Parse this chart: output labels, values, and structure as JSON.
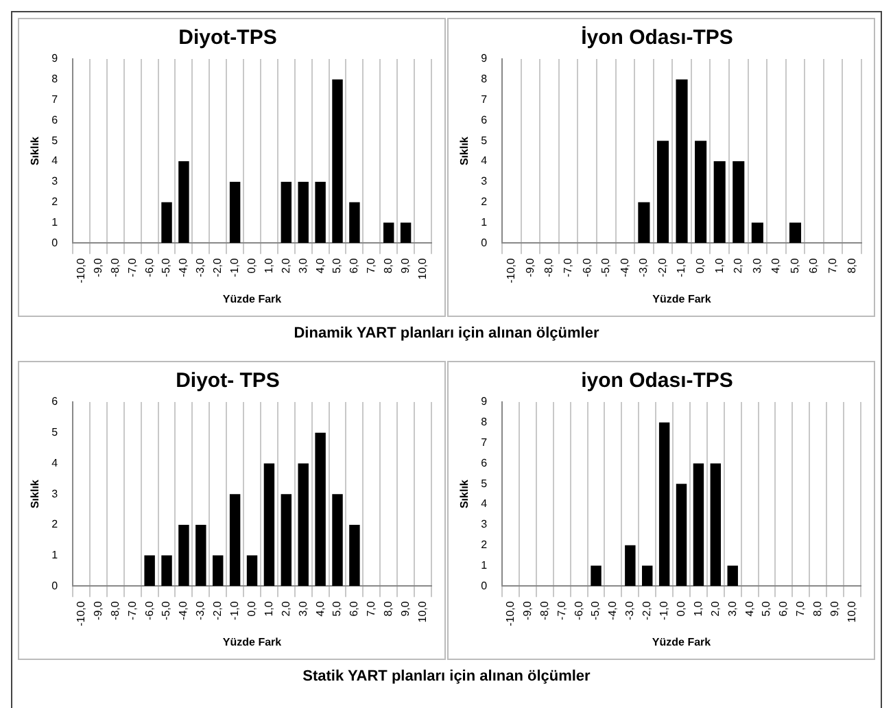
{
  "chart_data": [
    {
      "type": "bar",
      "title": "Diyot-TPS",
      "xlabel": "Yüzde Fark",
      "ylabel": "Sıklık",
      "color": "#000000",
      "grid": "x",
      "ylim": [
        0,
        9
      ],
      "yticks": [
        0,
        1,
        2,
        3,
        4,
        5,
        6,
        7,
        8,
        9
      ],
      "annotations": [
        "Dinamik YART planları için alınan ölçümler"
      ],
      "categories": [
        "-10,0",
        "-9,0",
        "-8,0",
        "-7,0",
        "-6,0",
        "-5,0",
        "-4,0",
        "-3,0",
        "-2,0",
        "-1,0",
        "0,0",
        "1,0",
        "2,0",
        "3,0",
        "4,0",
        "5,0",
        "6,0",
        "7,0",
        "8,0",
        "9,0",
        "10,0"
      ],
      "values": [
        0,
        0,
        0,
        0,
        0,
        2,
        4,
        0,
        0,
        3,
        0,
        0,
        3,
        3,
        3,
        8,
        2,
        0,
        1,
        1,
        0
      ]
    },
    {
      "type": "bar",
      "title": "İyon Odası-TPS",
      "xlabel": "Yüzde Fark",
      "ylabel": "Sıklık",
      "color": "#000000",
      "grid": "x",
      "ylim": [
        0,
        9
      ],
      "yticks": [
        0,
        1,
        2,
        3,
        4,
        5,
        6,
        7,
        8,
        9
      ],
      "categories": [
        "-10,0",
        "-9,0",
        "-8,0",
        "-7,0",
        "-6,0",
        "-5,0",
        "-4,0",
        "-3,0",
        "-2,0",
        "-1,0",
        "0,0",
        "1,0",
        "2,0",
        "3,0",
        "4,0",
        "5,0",
        "6,0",
        "7,0",
        "8,0"
      ],
      "values": [
        0,
        0,
        0,
        0,
        0,
        0,
        0,
        2,
        5,
        8,
        5,
        4,
        4,
        1,
        0,
        1,
        0,
        0,
        0
      ]
    },
    {
      "type": "bar",
      "title": "Diyot- TPS",
      "xlabel": "Yüzde Fark",
      "ylabel": "Sıklık",
      "color": "#000000",
      "grid": "x",
      "ylim": [
        0,
        6
      ],
      "yticks": [
        0,
        1,
        2,
        3,
        4,
        5,
        6
      ],
      "annotations": [
        "Statik YART planları için alınan ölçümler"
      ],
      "categories": [
        "-10,0",
        "-9,0",
        "-8,0",
        "-7,0",
        "-6,0",
        "-5,0",
        "-4,0",
        "-3,0",
        "-2,0",
        "-1,0",
        "0,0",
        "1,0",
        "2,0",
        "3,0",
        "4,0",
        "5,0",
        "6,0",
        "7,0",
        "8,0",
        "9,0",
        "10,0"
      ],
      "values": [
        0,
        0,
        0,
        0,
        1,
        1,
        2,
        2,
        1,
        3,
        1,
        4,
        3,
        4,
        5,
        3,
        2,
        0,
        0,
        0,
        0
      ]
    },
    {
      "type": "bar",
      "title": "iyon Odası-TPS",
      "xlabel": "Yüzde Fark",
      "ylabel": "Sıklık",
      "color": "#000000",
      "grid": "x",
      "ylim": [
        0,
        9
      ],
      "yticks": [
        0,
        1,
        2,
        3,
        4,
        5,
        6,
        7,
        8,
        9
      ],
      "categories": [
        "-10,0",
        "-9,0",
        "-8,0",
        "-7,0",
        "-6,0",
        "-5,0",
        "-4,0",
        "-3,0",
        "-2,0",
        "-1,0",
        "0,0",
        "1,0",
        "2,0",
        "3,0",
        "4,0",
        "5,0",
        "6,0",
        "7,0",
        "8,0",
        "9,0",
        "10,0"
      ],
      "values": [
        0,
        0,
        0,
        0,
        0,
        1,
        0,
        2,
        1,
        8,
        5,
        6,
        6,
        1,
        0,
        0,
        0,
        0,
        0,
        0,
        0
      ]
    }
  ]
}
